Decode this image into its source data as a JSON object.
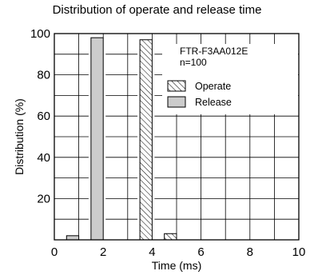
{
  "chart_data": {
    "type": "bar",
    "title": "Distribution of operate and release time",
    "xlabel": "Time (ms)",
    "ylabel": "Distribution (%)",
    "xlim": [
      0,
      10
    ],
    "ylim": [
      0,
      100
    ],
    "x_ticks": [
      0,
      2,
      4,
      6,
      8,
      10
    ],
    "y_ticks": [
      20,
      40,
      60,
      80,
      100
    ],
    "grid": true,
    "annotation": [
      "FTR-F3AA012E",
      "n=100"
    ],
    "legend_placement": "upper-right",
    "series": [
      {
        "name": "Operate",
        "fill": "hatched",
        "bars": [
          {
            "x_start": 3.5,
            "x_end": 4.0,
            "value": 97
          },
          {
            "x_start": 4.5,
            "x_end": 5.0,
            "value": 3
          }
        ]
      },
      {
        "name": "Release",
        "fill": "#cccccc",
        "bars": [
          {
            "x_start": 0.5,
            "x_end": 1.0,
            "value": 2
          },
          {
            "x_start": 1.5,
            "x_end": 2.0,
            "value": 98
          }
        ]
      }
    ]
  }
}
